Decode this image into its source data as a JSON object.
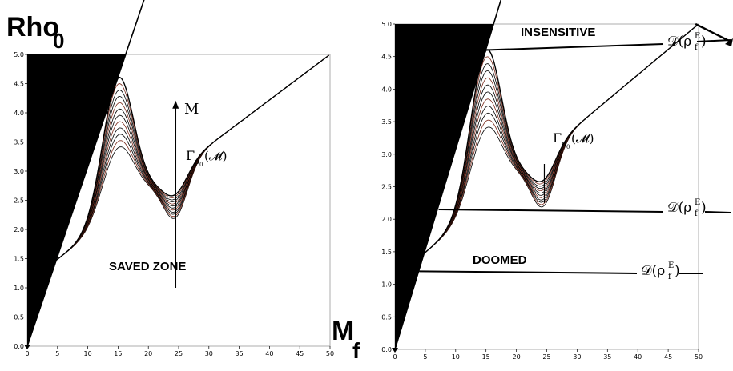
{
  "chart_data": [
    {
      "type": "line",
      "title": "",
      "ylabel_main": "Rho",
      "ylabel_sub": "0",
      "xlabel_main": "M",
      "xlabel_sub": "f",
      "xlim": [
        0,
        50
      ],
      "ylim": [
        0,
        5
      ],
      "xticks": [
        "0",
        "5",
        "10",
        "15",
        "20",
        "25",
        "30",
        "35",
        "40",
        "45",
        "50"
      ],
      "yticks": [
        "0.0",
        "0.5",
        "1.0",
        "1.5",
        "2.0",
        "2.5",
        "3.0",
        "3.5",
        "4.0",
        "4.5",
        "5.0"
      ],
      "grid": false,
      "curve_family": {
        "count": 12,
        "peak_x": 15,
        "valley_x": 24.5,
        "peak_y_range": [
          3.4,
          4.6
        ],
        "valley_y_range": [
          2.2,
          2.6
        ],
        "asymptote_slope": 0.078
      },
      "boundary_line": {
        "x": [
          0,
          19.5
        ],
        "y": [
          0,
          6
        ]
      },
      "arrow_label": "M",
      "gamma_base": "Γ",
      "gamma_sub": "ρ",
      "gamma_subsub": "0",
      "gamma_arg": "(𝓜)",
      "zone_label": "SAVED ZONE"
    },
    {
      "type": "line",
      "title": "",
      "xlim": [
        0,
        50
      ],
      "ylim": [
        0,
        5
      ],
      "xticks": [
        "0",
        "5",
        "10",
        "15",
        "20",
        "25",
        "30",
        "35",
        "40",
        "45",
        "50"
      ],
      "yticks": [
        "0.0",
        "0.5",
        "1.0",
        "1.5",
        "2.0",
        "2.5",
        "3.0",
        "3.5",
        "4.0",
        "4.5",
        "5.0"
      ],
      "grid": false,
      "curve_family": {
        "count": 12,
        "peak_x": 15,
        "valley_x": 24.5,
        "peak_y_range": [
          3.4,
          4.6
        ],
        "valley_y_range": [
          2.2,
          2.6
        ],
        "asymptote_slope": 0.078
      },
      "boundary_line": {
        "x": [
          0,
          19.5
        ],
        "y": [
          0,
          6
        ]
      },
      "gamma_base": "Γ",
      "gamma_sub": "ρ",
      "gamma_subsub": "0",
      "gamma_arg": "(𝓜)",
      "insensitive_label": "INSENSITIVE",
      "doomed_label": "DOOMED",
      "d_base": "𝒟(ρ",
      "d_sup": "E",
      "d_sub": "f",
      "d_close": ")",
      "levels": [
        4.6,
        2.15,
        1.2
      ]
    }
  ]
}
